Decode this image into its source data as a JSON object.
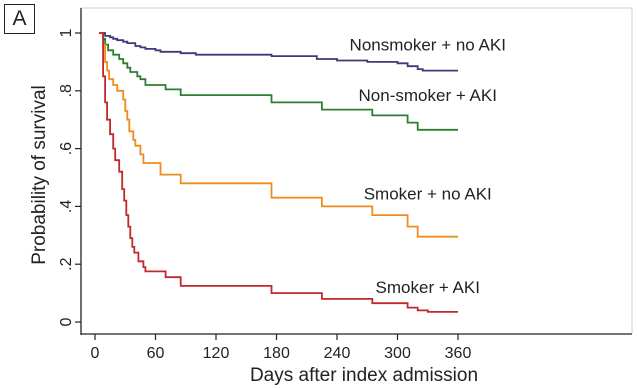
{
  "panel_label": "A",
  "chart_data": {
    "type": "line",
    "step": true,
    "xlabel": "Days after index admission",
    "ylabel": "Probability of survival",
    "xlim": [
      0,
      400
    ],
    "ylim": [
      0,
      1
    ],
    "x_ticks": [
      0,
      60,
      120,
      180,
      240,
      300,
      360
    ],
    "y_ticks": [
      0,
      0.2,
      0.4,
      0.6,
      0.8,
      1
    ],
    "y_tick_labels": [
      "0",
      ".2",
      ".4",
      ".6",
      ".8",
      "1"
    ],
    "grid": false,
    "legend": "inline labels",
    "colors": {
      "nonsmoker_no_aki": "#3b3b7a",
      "nonsmoker_aki": "#2e7d32",
      "smoker_no_aki": "#f08c1e",
      "smoker_aki": "#c0282d",
      "axis": "#222222",
      "frame": "#cfcfcf"
    },
    "series": [
      {
        "name": "Nonsmoker + no AKI",
        "color_key": "nonsmoker_no_aki",
        "label_at": [
          330,
          0.955
        ],
        "points": [
          [
            4,
            1
          ],
          [
            10,
            0.99
          ],
          [
            15,
            0.985
          ],
          [
            18,
            0.98
          ],
          [
            22,
            0.975
          ],
          [
            28,
            0.97
          ],
          [
            32,
            0.965
          ],
          [
            40,
            0.955
          ],
          [
            45,
            0.95
          ],
          [
            50,
            0.945
          ],
          [
            60,
            0.94
          ],
          [
            65,
            0.935
          ],
          [
            85,
            0.93
          ],
          [
            100,
            0.925
          ],
          [
            175,
            0.92
          ],
          [
            220,
            0.91
          ],
          [
            240,
            0.905
          ],
          [
            270,
            0.9
          ],
          [
            300,
            0.895
          ],
          [
            310,
            0.885
          ],
          [
            320,
            0.875
          ],
          [
            325,
            0.87
          ],
          [
            360,
            0.87
          ]
        ]
      },
      {
        "name": "Non-smoker + AKI",
        "color_key": "nonsmoker_aki",
        "label_at": [
          330,
          0.78
        ],
        "points": [
          [
            4,
            1
          ],
          [
            8,
            0.98
          ],
          [
            10,
            0.96
          ],
          [
            13,
            0.94
          ],
          [
            18,
            0.925
          ],
          [
            24,
            0.91
          ],
          [
            28,
            0.895
          ],
          [
            32,
            0.88
          ],
          [
            35,
            0.865
          ],
          [
            42,
            0.85
          ],
          [
            45,
            0.84
          ],
          [
            50,
            0.82
          ],
          [
            70,
            0.805
          ],
          [
            85,
            0.785
          ],
          [
            175,
            0.76
          ],
          [
            225,
            0.735
          ],
          [
            275,
            0.715
          ],
          [
            310,
            0.69
          ],
          [
            320,
            0.665
          ],
          [
            360,
            0.665
          ]
        ]
      },
      {
        "name": "Smoker + no AKI",
        "color_key": "smoker_no_aki",
        "label_at": [
          330,
          0.44
        ],
        "points": [
          [
            4,
            1
          ],
          [
            8,
            0.96
          ],
          [
            10,
            0.9
          ],
          [
            12,
            0.87
          ],
          [
            14,
            0.84
          ],
          [
            18,
            0.82
          ],
          [
            22,
            0.8
          ],
          [
            28,
            0.77
          ],
          [
            30,
            0.73
          ],
          [
            32,
            0.7
          ],
          [
            34,
            0.66
          ],
          [
            38,
            0.63
          ],
          [
            40,
            0.61
          ],
          [
            45,
            0.58
          ],
          [
            48,
            0.55
          ],
          [
            65,
            0.51
          ],
          [
            85,
            0.48
          ],
          [
            175,
            0.43
          ],
          [
            225,
            0.4
          ],
          [
            275,
            0.37
          ],
          [
            310,
            0.33
          ],
          [
            320,
            0.295
          ],
          [
            360,
            0.295
          ]
        ]
      },
      {
        "name": "Smoker + AKI",
        "color_key": "smoker_aki",
        "label_at": [
          330,
          0.115
        ],
        "points": [
          [
            4,
            1
          ],
          [
            8,
            0.85
          ],
          [
            10,
            0.76
          ],
          [
            12,
            0.7
          ],
          [
            15,
            0.65
          ],
          [
            18,
            0.6
          ],
          [
            20,
            0.56
          ],
          [
            24,
            0.52
          ],
          [
            27,
            0.46
          ],
          [
            29,
            0.42
          ],
          [
            31,
            0.37
          ],
          [
            33,
            0.33
          ],
          [
            35,
            0.29
          ],
          [
            37,
            0.26
          ],
          [
            39,
            0.24
          ],
          [
            43,
            0.21
          ],
          [
            48,
            0.19
          ],
          [
            50,
            0.175
          ],
          [
            70,
            0.155
          ],
          [
            85,
            0.125
          ],
          [
            175,
            0.1
          ],
          [
            225,
            0.08
          ],
          [
            275,
            0.065
          ],
          [
            310,
            0.05
          ],
          [
            320,
            0.04
          ],
          [
            330,
            0.035
          ],
          [
            360,
            0.035
          ]
        ]
      }
    ]
  }
}
